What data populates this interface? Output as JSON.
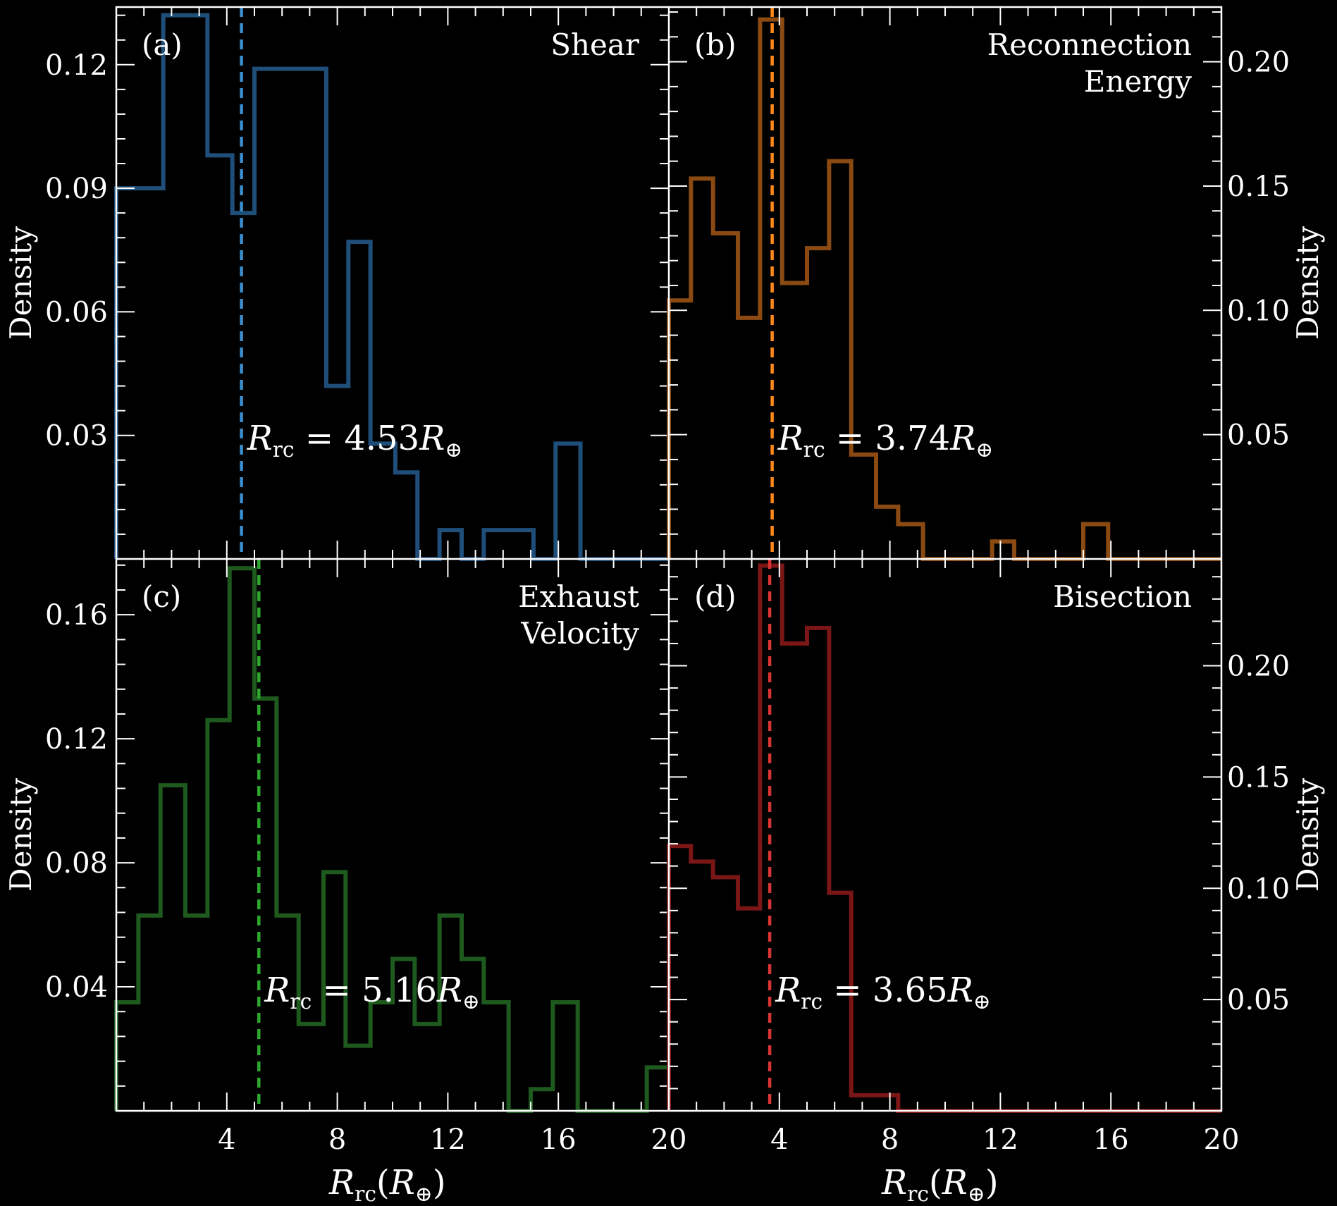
{
  "chart_data": [
    {
      "type": "histogram",
      "panel_label": "(a)",
      "method_lines": [
        "Shear"
      ],
      "color": "#1f4e79",
      "median_color": "#3a8fd0",
      "median": 4.53,
      "annotation": "R_rc = 4.53R_⊕",
      "ylabel": "Density",
      "y_axis_side": "left",
      "ylim": [
        0,
        0.134
      ],
      "yticks": [
        0.03,
        0.06,
        0.09,
        0.12
      ],
      "ytick_labels": [
        "0.03",
        "0.06",
        "0.09",
        "0.12"
      ],
      "bins": [
        [
          0,
          1.7,
          0.09
        ],
        [
          1.7,
          3.3,
          0.132
        ],
        [
          3.3,
          4.2,
          0.098
        ],
        [
          4.2,
          5.0,
          0.084
        ],
        [
          5.0,
          7.6,
          0.119
        ],
        [
          7.6,
          8.4,
          0.042
        ],
        [
          8.4,
          9.2,
          0.077
        ],
        [
          9.2,
          10.1,
          0.028
        ],
        [
          10.1,
          10.9,
          0.021
        ],
        [
          10.9,
          11.7,
          0.0
        ],
        [
          11.7,
          12.5,
          0.007
        ],
        [
          12.5,
          13.3,
          0.0
        ],
        [
          13.3,
          15.1,
          0.007
        ],
        [
          15.1,
          15.9,
          0.0
        ],
        [
          15.9,
          16.8,
          0.028
        ],
        [
          16.8,
          20,
          0.0
        ]
      ]
    },
    {
      "type": "histogram",
      "panel_label": "(b)",
      "method_lines": [
        "Reconnection",
        "Energy"
      ],
      "color": "#8a4a12",
      "median_color": "#ff8a1a",
      "median": 3.74,
      "annotation": "R_rc = 3.74R_⊕",
      "ylabel": "Density",
      "y_axis_side": "right",
      "ylim": [
        0,
        0.222
      ],
      "yticks": [
        0.05,
        0.1,
        0.15,
        0.2
      ],
      "ytick_labels": [
        "0.05",
        "0.10",
        "0.15",
        "0.20"
      ],
      "bins": [
        [
          0,
          0.8,
          0.104
        ],
        [
          0.8,
          1.6,
          0.153
        ],
        [
          1.6,
          2.5,
          0.131
        ],
        [
          2.5,
          3.3,
          0.097
        ],
        [
          3.3,
          4.1,
          0.217
        ],
        [
          4.1,
          5.0,
          0.111
        ],
        [
          5.0,
          5.8,
          0.125
        ],
        [
          5.8,
          6.6,
          0.16
        ],
        [
          6.6,
          7.5,
          0.042
        ],
        [
          7.5,
          8.3,
          0.021
        ],
        [
          8.3,
          9.2,
          0.014
        ],
        [
          9.2,
          11.7,
          0.0
        ],
        [
          11.7,
          12.5,
          0.007
        ],
        [
          12.5,
          15.0,
          0.0
        ],
        [
          15.0,
          15.9,
          0.014
        ],
        [
          15.9,
          20,
          0.0
        ]
      ]
    },
    {
      "type": "histogram",
      "panel_label": "(c)",
      "method_lines": [
        "Exhaust",
        "Velocity"
      ],
      "color": "#1e5a1e",
      "median_color": "#2ea82e",
      "median": 5.16,
      "annotation": "R_rc = 5.16R_⊕",
      "ylabel": "Density",
      "y_axis_side": "left",
      "ylim": [
        0,
        0.178
      ],
      "yticks": [
        0.04,
        0.08,
        0.12,
        0.16
      ],
      "ytick_labels": [
        "0.04",
        "0.08",
        "0.12",
        "0.16"
      ],
      "bins": [
        [
          0,
          0.8,
          0.035
        ],
        [
          0.8,
          1.6,
          0.063
        ],
        [
          1.6,
          2.5,
          0.105
        ],
        [
          2.5,
          3.3,
          0.063
        ],
        [
          3.3,
          4.1,
          0.126
        ],
        [
          4.1,
          5.0,
          0.175
        ],
        [
          5.0,
          5.8,
          0.133
        ],
        [
          5.8,
          6.6,
          0.063
        ],
        [
          6.6,
          7.5,
          0.028
        ],
        [
          7.5,
          8.3,
          0.077
        ],
        [
          8.3,
          9.2,
          0.021
        ],
        [
          9.2,
          10.0,
          0.035
        ],
        [
          10.0,
          10.8,
          0.049
        ],
        [
          10.8,
          11.7,
          0.028
        ],
        [
          11.7,
          12.5,
          0.063
        ],
        [
          12.5,
          13.3,
          0.049
        ],
        [
          13.3,
          14.2,
          0.035
        ],
        [
          14.2,
          15.0,
          0.0
        ],
        [
          15.0,
          15.8,
          0.007
        ],
        [
          15.8,
          16.7,
          0.035
        ],
        [
          16.7,
          19.2,
          0.0
        ],
        [
          19.2,
          20,
          0.014
        ]
      ]
    },
    {
      "type": "histogram",
      "panel_label": "(d)",
      "method_lines": [
        "Bisection"
      ],
      "color": "#7a1616",
      "median_color": "#d93535",
      "median": 3.65,
      "annotation": "R_rc = 3.65R_⊕",
      "ylabel": "Density",
      "y_axis_side": "right",
      "ylim": [
        0,
        0.248
      ],
      "yticks": [
        0.05,
        0.1,
        0.15,
        0.2
      ],
      "ytick_labels": [
        "0.05",
        "0.10",
        "0.15",
        "0.20"
      ],
      "bins": [
        [
          0,
          0.8,
          0.119
        ],
        [
          0.8,
          1.6,
          0.112
        ],
        [
          1.6,
          2.5,
          0.105
        ],
        [
          2.5,
          3.3,
          0.091
        ],
        [
          3.3,
          4.1,
          0.245
        ],
        [
          4.1,
          5.0,
          0.21
        ],
        [
          5.0,
          5.8,
          0.217
        ],
        [
          5.8,
          6.6,
          0.098
        ],
        [
          6.6,
          7.5,
          0.007
        ],
        [
          7.5,
          8.3,
          0.007
        ],
        [
          8.3,
          20,
          0.0
        ]
      ]
    }
  ],
  "xlabel": "R_rc(R_⊕)",
  "xlim": [
    0,
    20
  ],
  "xticks": [
    4,
    8,
    12,
    16,
    20
  ]
}
